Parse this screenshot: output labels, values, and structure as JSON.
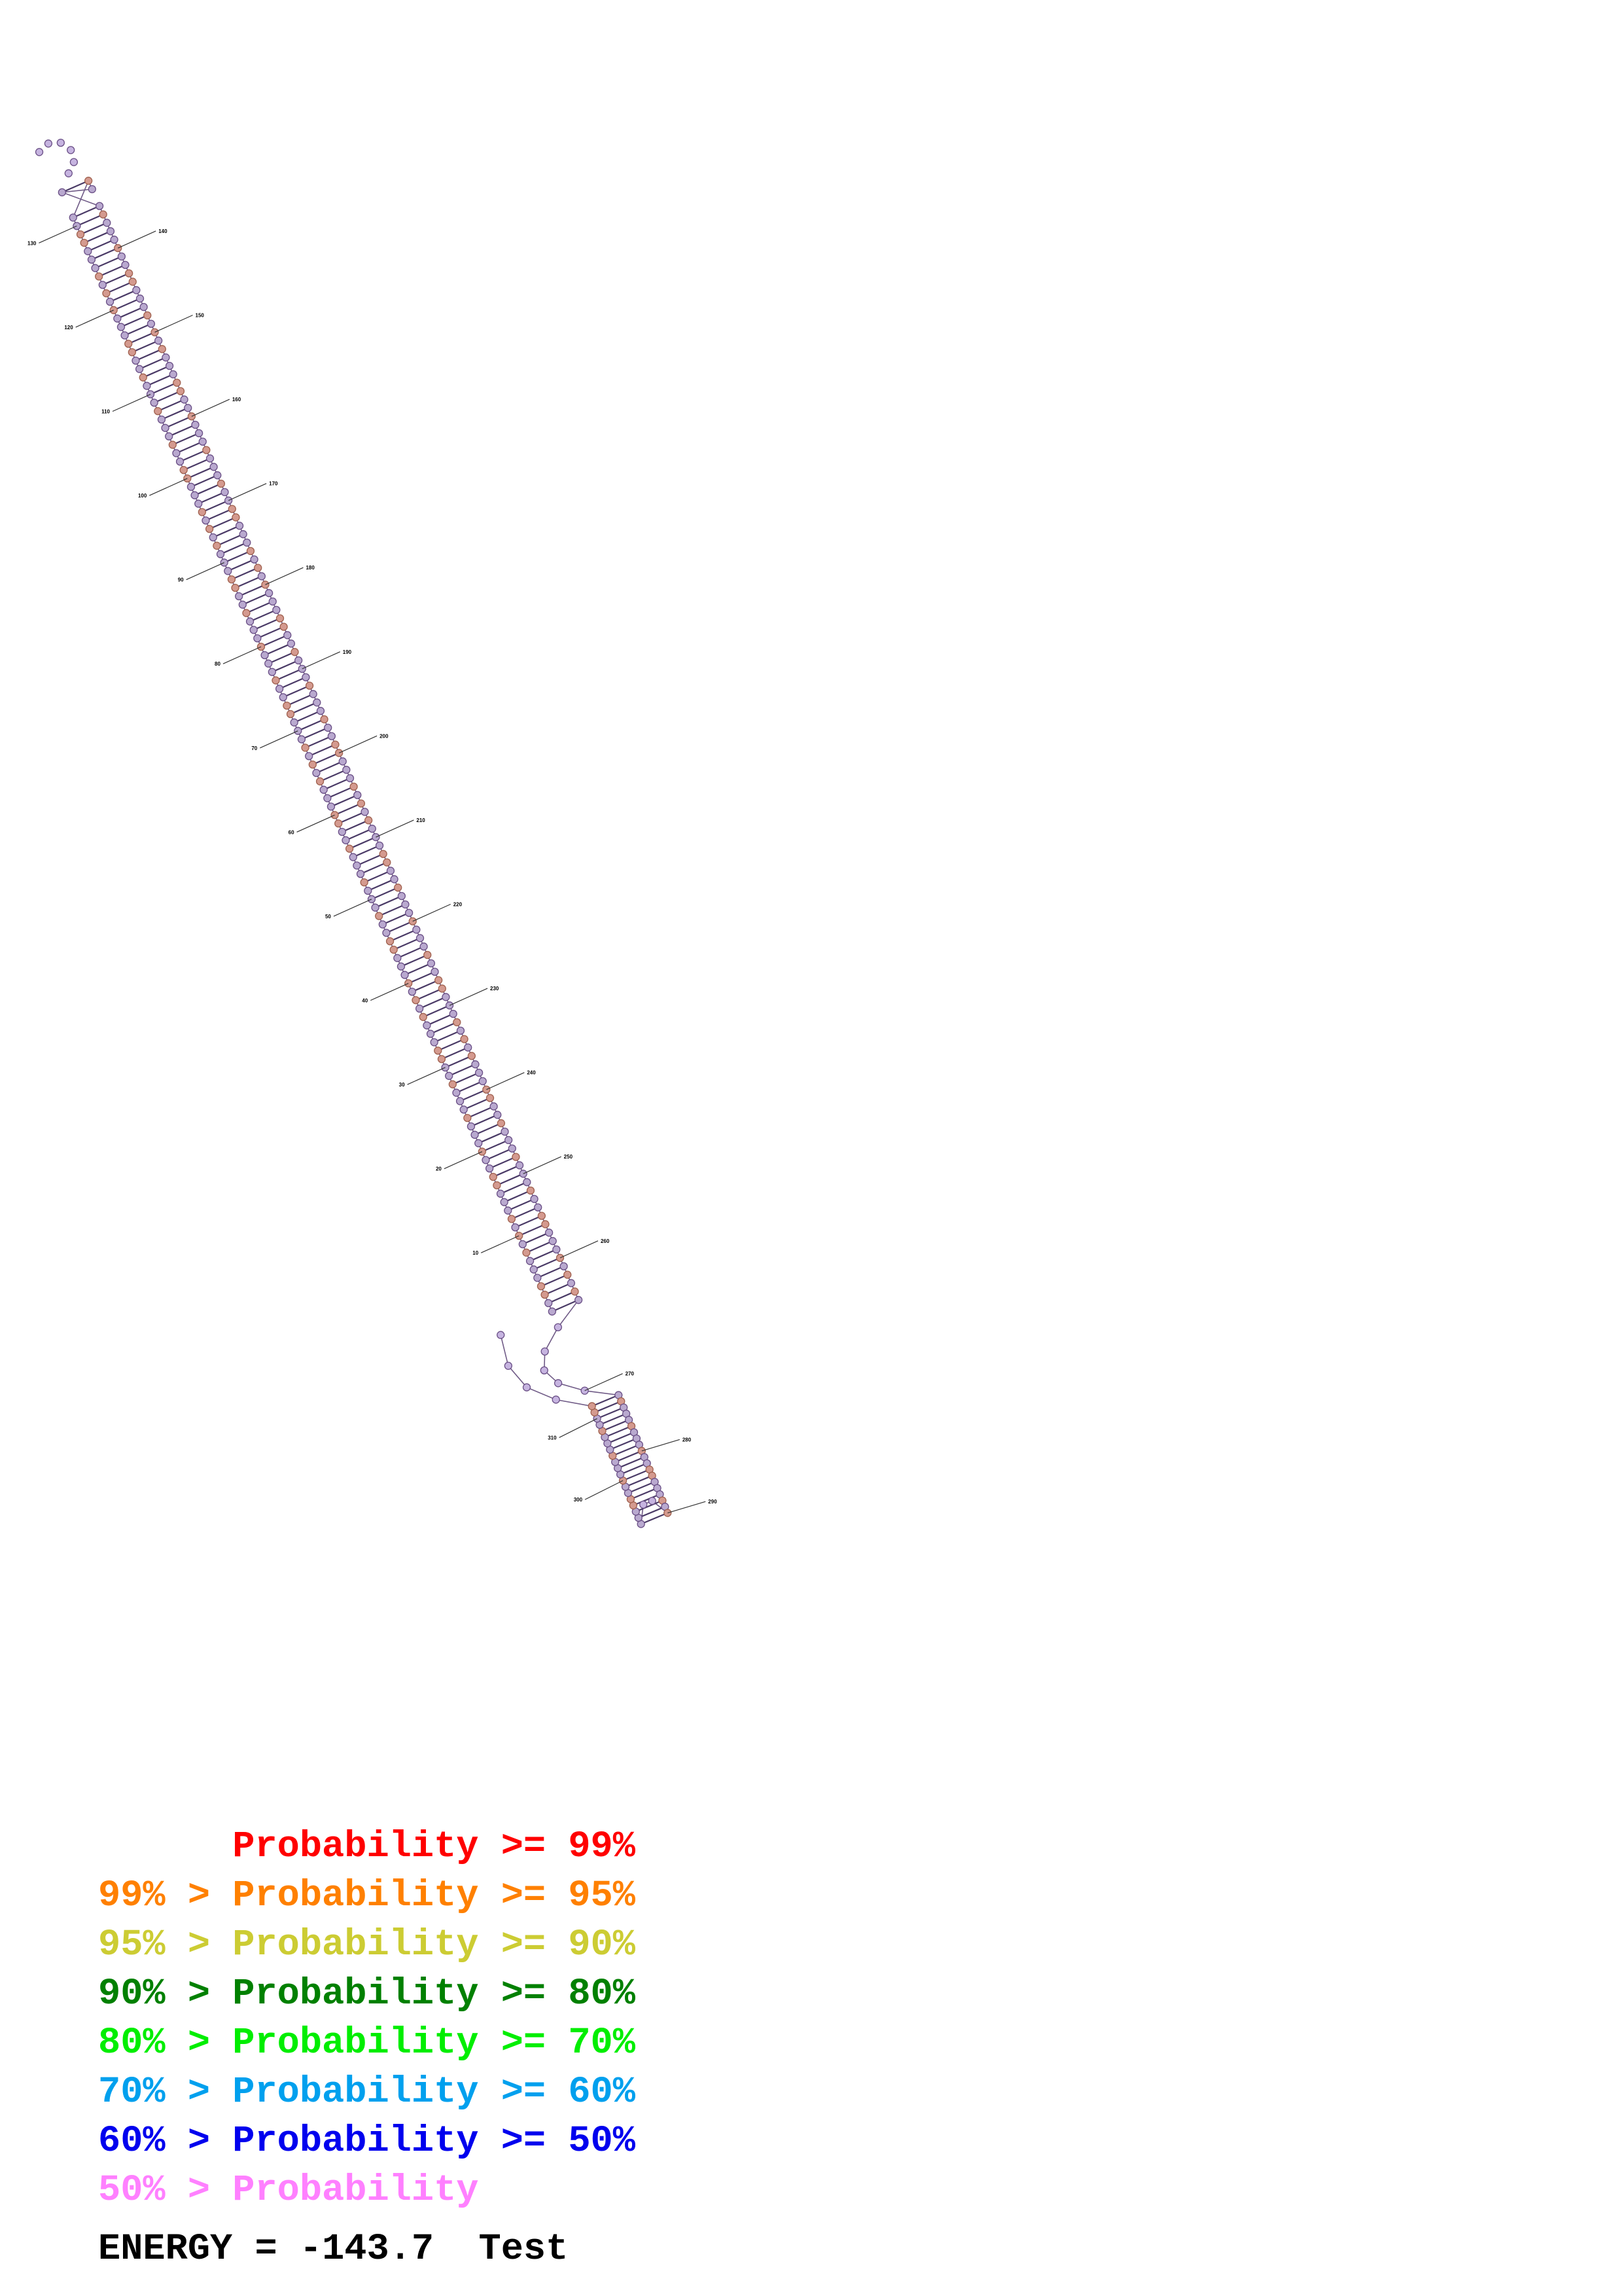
{
  "structure": {
    "start_index": 1,
    "length": 316,
    "helix": [
      {
        "i_from": 1,
        "j_from": 265,
        "count": 134
      },
      {
        "i_from": 271,
        "j_from": 312,
        "count": 20
      }
    ],
    "base_colors": {
      "paired": "#b9a9cf",
      "paired_stroke": "#6a4f86",
      "unpaired": "#d49a8f",
      "unpaired_stroke": "#a0614f",
      "loop": "#c6b4e0"
    },
    "tick_labels": [
      {
        "index": 10,
        "text": "10"
      },
      {
        "index": 20,
        "text": "20"
      },
      {
        "index": 30,
        "text": "30"
      },
      {
        "index": 40,
        "text": "40"
      },
      {
        "index": 50,
        "text": "50"
      },
      {
        "index": 60,
        "text": "60"
      },
      {
        "index": 70,
        "text": "70"
      },
      {
        "index": 80,
        "text": "80"
      },
      {
        "index": 90,
        "text": "90"
      },
      {
        "index": 100,
        "text": "100"
      },
      {
        "index": 110,
        "text": "110"
      },
      {
        "index": 120,
        "text": "120"
      },
      {
        "index": 130,
        "text": "130"
      },
      {
        "index": 140,
        "text": "140"
      },
      {
        "index": 150,
        "text": "150"
      },
      {
        "index": 160,
        "text": "160"
      },
      {
        "index": 170,
        "text": "170"
      },
      {
        "index": 180,
        "text": "180"
      },
      {
        "index": 190,
        "text": "190"
      },
      {
        "index": 200,
        "text": "200"
      },
      {
        "index": 210,
        "text": "210"
      },
      {
        "index": 220,
        "text": "220"
      },
      {
        "index": 230,
        "text": "230"
      },
      {
        "index": 240,
        "text": "240"
      },
      {
        "index": 250,
        "text": "250"
      },
      {
        "index": 260,
        "text": "260"
      },
      {
        "index": 270,
        "text": "270"
      },
      {
        "index": 280,
        "text": "280"
      },
      {
        "index": 290,
        "text": "290"
      },
      {
        "index": 300,
        "text": "300"
      },
      {
        "index": 310,
        "text": "310"
      }
    ]
  },
  "legend": {
    "items": [
      {
        "prefix": "",
        "label": "Probability",
        "suffix": " >= 99%",
        "color": "#ff0000"
      },
      {
        "prefix": "99% > ",
        "label": "Probability",
        "suffix": " >= 95%",
        "color": "#ff8000"
      },
      {
        "prefix": "95% > ",
        "label": "Probability",
        "suffix": " >= 90%",
        "color": "#cccc33"
      },
      {
        "prefix": "90% > ",
        "label": "Probability",
        "suffix": " >= 80%",
        "color": "#008000"
      },
      {
        "prefix": "80% > ",
        "label": "Probability",
        "suffix": " >= 70%",
        "color": "#00ee00"
      },
      {
        "prefix": "70% > ",
        "label": "Probability",
        "suffix": " >= 60%",
        "color": "#00a0ee"
      },
      {
        "prefix": "60% > ",
        "label": "Probability",
        "suffix": " >= 50%",
        "color": "#0000ee"
      },
      {
        "prefix": "50% > ",
        "label": "Probability",
        "suffix": "",
        "color": "#ff80ff"
      }
    ]
  },
  "energy": {
    "label": "ENERGY = ",
    "value": "-143.7",
    "name": "Test"
  }
}
